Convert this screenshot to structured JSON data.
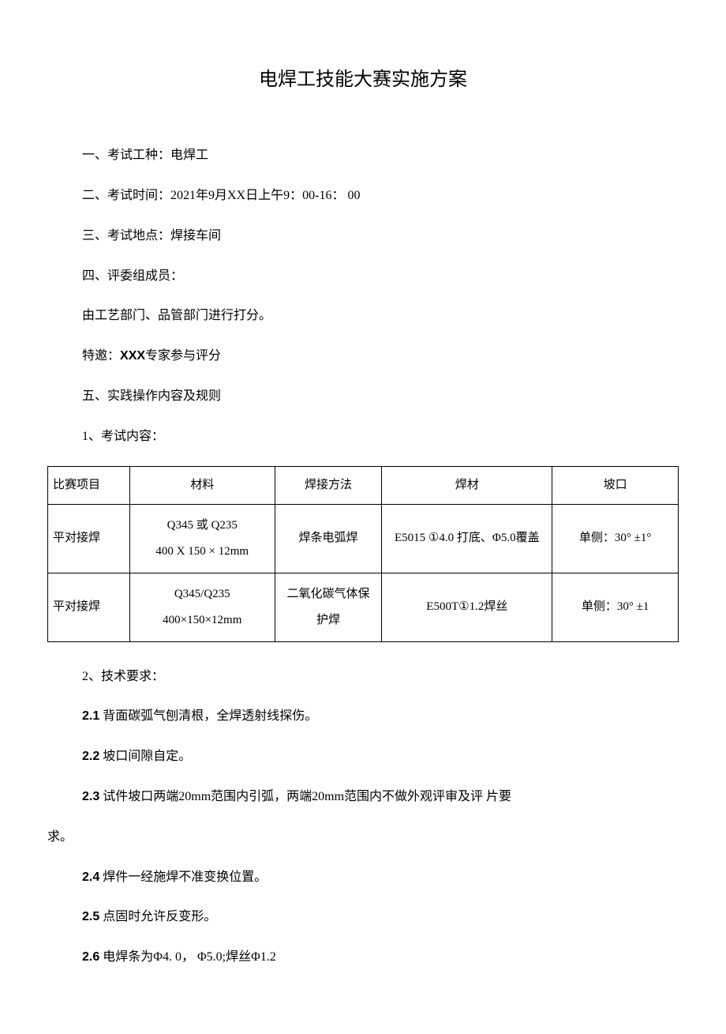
{
  "title": "电焊工技能大赛实施方案",
  "sections": {
    "s1": "一、考试工种：电焊工",
    "s2": "二、考试时间：2021年9月XX日上午9：00-16： 00",
    "s3": "三、考试地点：焊接车间",
    "s4": "四、评委组成员：",
    "s4a": "由工艺部门、品管部门进行打分。",
    "s4b_prefix": "特邀：",
    "s4b_bold": "XXX",
    "s4b_suffix": "专家参与评分",
    "s5": "五、实践操作内容及规则",
    "s5_1": "1、考试内容：",
    "s5_2": "2、技术要求："
  },
  "table": {
    "headers": [
      "比赛项目",
      "材料",
      "焊接方法",
      "焊材",
      "坡口"
    ],
    "rows": [
      {
        "c0": "平对接焊",
        "c1": "Q345 或 Q235\n400 X 150 × 12mm",
        "c2": "焊条电弧焊",
        "c3": "E5015 ①4.0 打底、Φ5.0覆盖",
        "c4": "单侧：30° ±1°"
      },
      {
        "c0": "平对接焊",
        "c1": "Q345/Q235\n400×150×12mm",
        "c2": "二氧化碳气体保护焊",
        "c3": "E500T①1.2焊丝",
        "c4": "单侧：30° ±1"
      }
    ]
  },
  "tech": {
    "t1_num": "2.1",
    "t1_text": "  背面碳弧气刨清根，全焊透射线探伤。",
    "t2_num": "2.2",
    "t2_text": "  坡口间隙自定。",
    "t3_num": "2.3",
    "t3_text": "  试件坡口两端20mm范围内引弧，两端20mm范围内不做外观评审及评 片要",
    "t3_cont": "求。",
    "t4_num": "2.4",
    "t4_text": "  焊件一经施焊不准变换位置。",
    "t5_num": "2.5",
    "t5_text": "  点固时允许反变形。",
    "t6_num": "2.6",
    "t6_text": "  电焊条为Φ4. 0， Φ5.0;焊丝Φ1.2"
  }
}
